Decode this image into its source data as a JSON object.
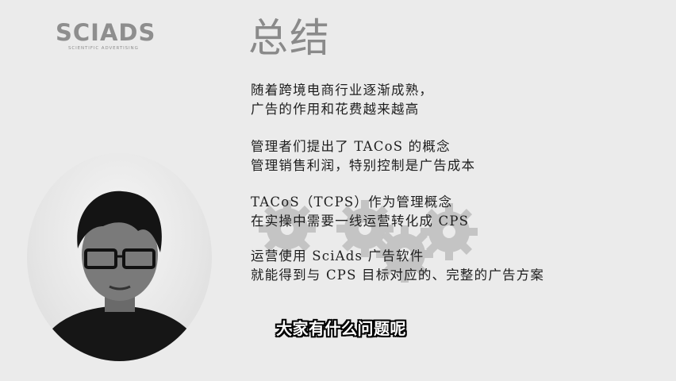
{
  "logo": {
    "name": "SCIADS",
    "tagline": "SCIENTIFIC ADVERTISING"
  },
  "title": "总结",
  "paragraphs": [
    {
      "lines": [
        "随着跨境电商行业逐渐成熟，",
        "广告的作用和花费越来越高"
      ]
    },
    {
      "lines": [
        "管理者们提出了 TACoS 的概念",
        "管理销售利润，特别控制是广告成本"
      ]
    },
    {
      "lines": [
        "TACoS（TCPS）作为管理概念",
        "在实操中需要一线运营转化成 CPS"
      ]
    },
    {
      "lines": [
        "运营使用 SciAds 广告软件",
        "就能得到与 CPS 目标对应的、完整的广告方案"
      ]
    }
  ],
  "caption": "大家有什么问题呢",
  "colors": {
    "background": "#ebebeb",
    "title": "#8a8a8a",
    "logo": "#8e8e8e",
    "gear": "#c4c4c4",
    "text": "#1e1e1e",
    "caption": "#ffffff"
  },
  "icons": [
    "gear-icon",
    "gear-icon",
    "gear-icon",
    "gear-icon"
  ]
}
